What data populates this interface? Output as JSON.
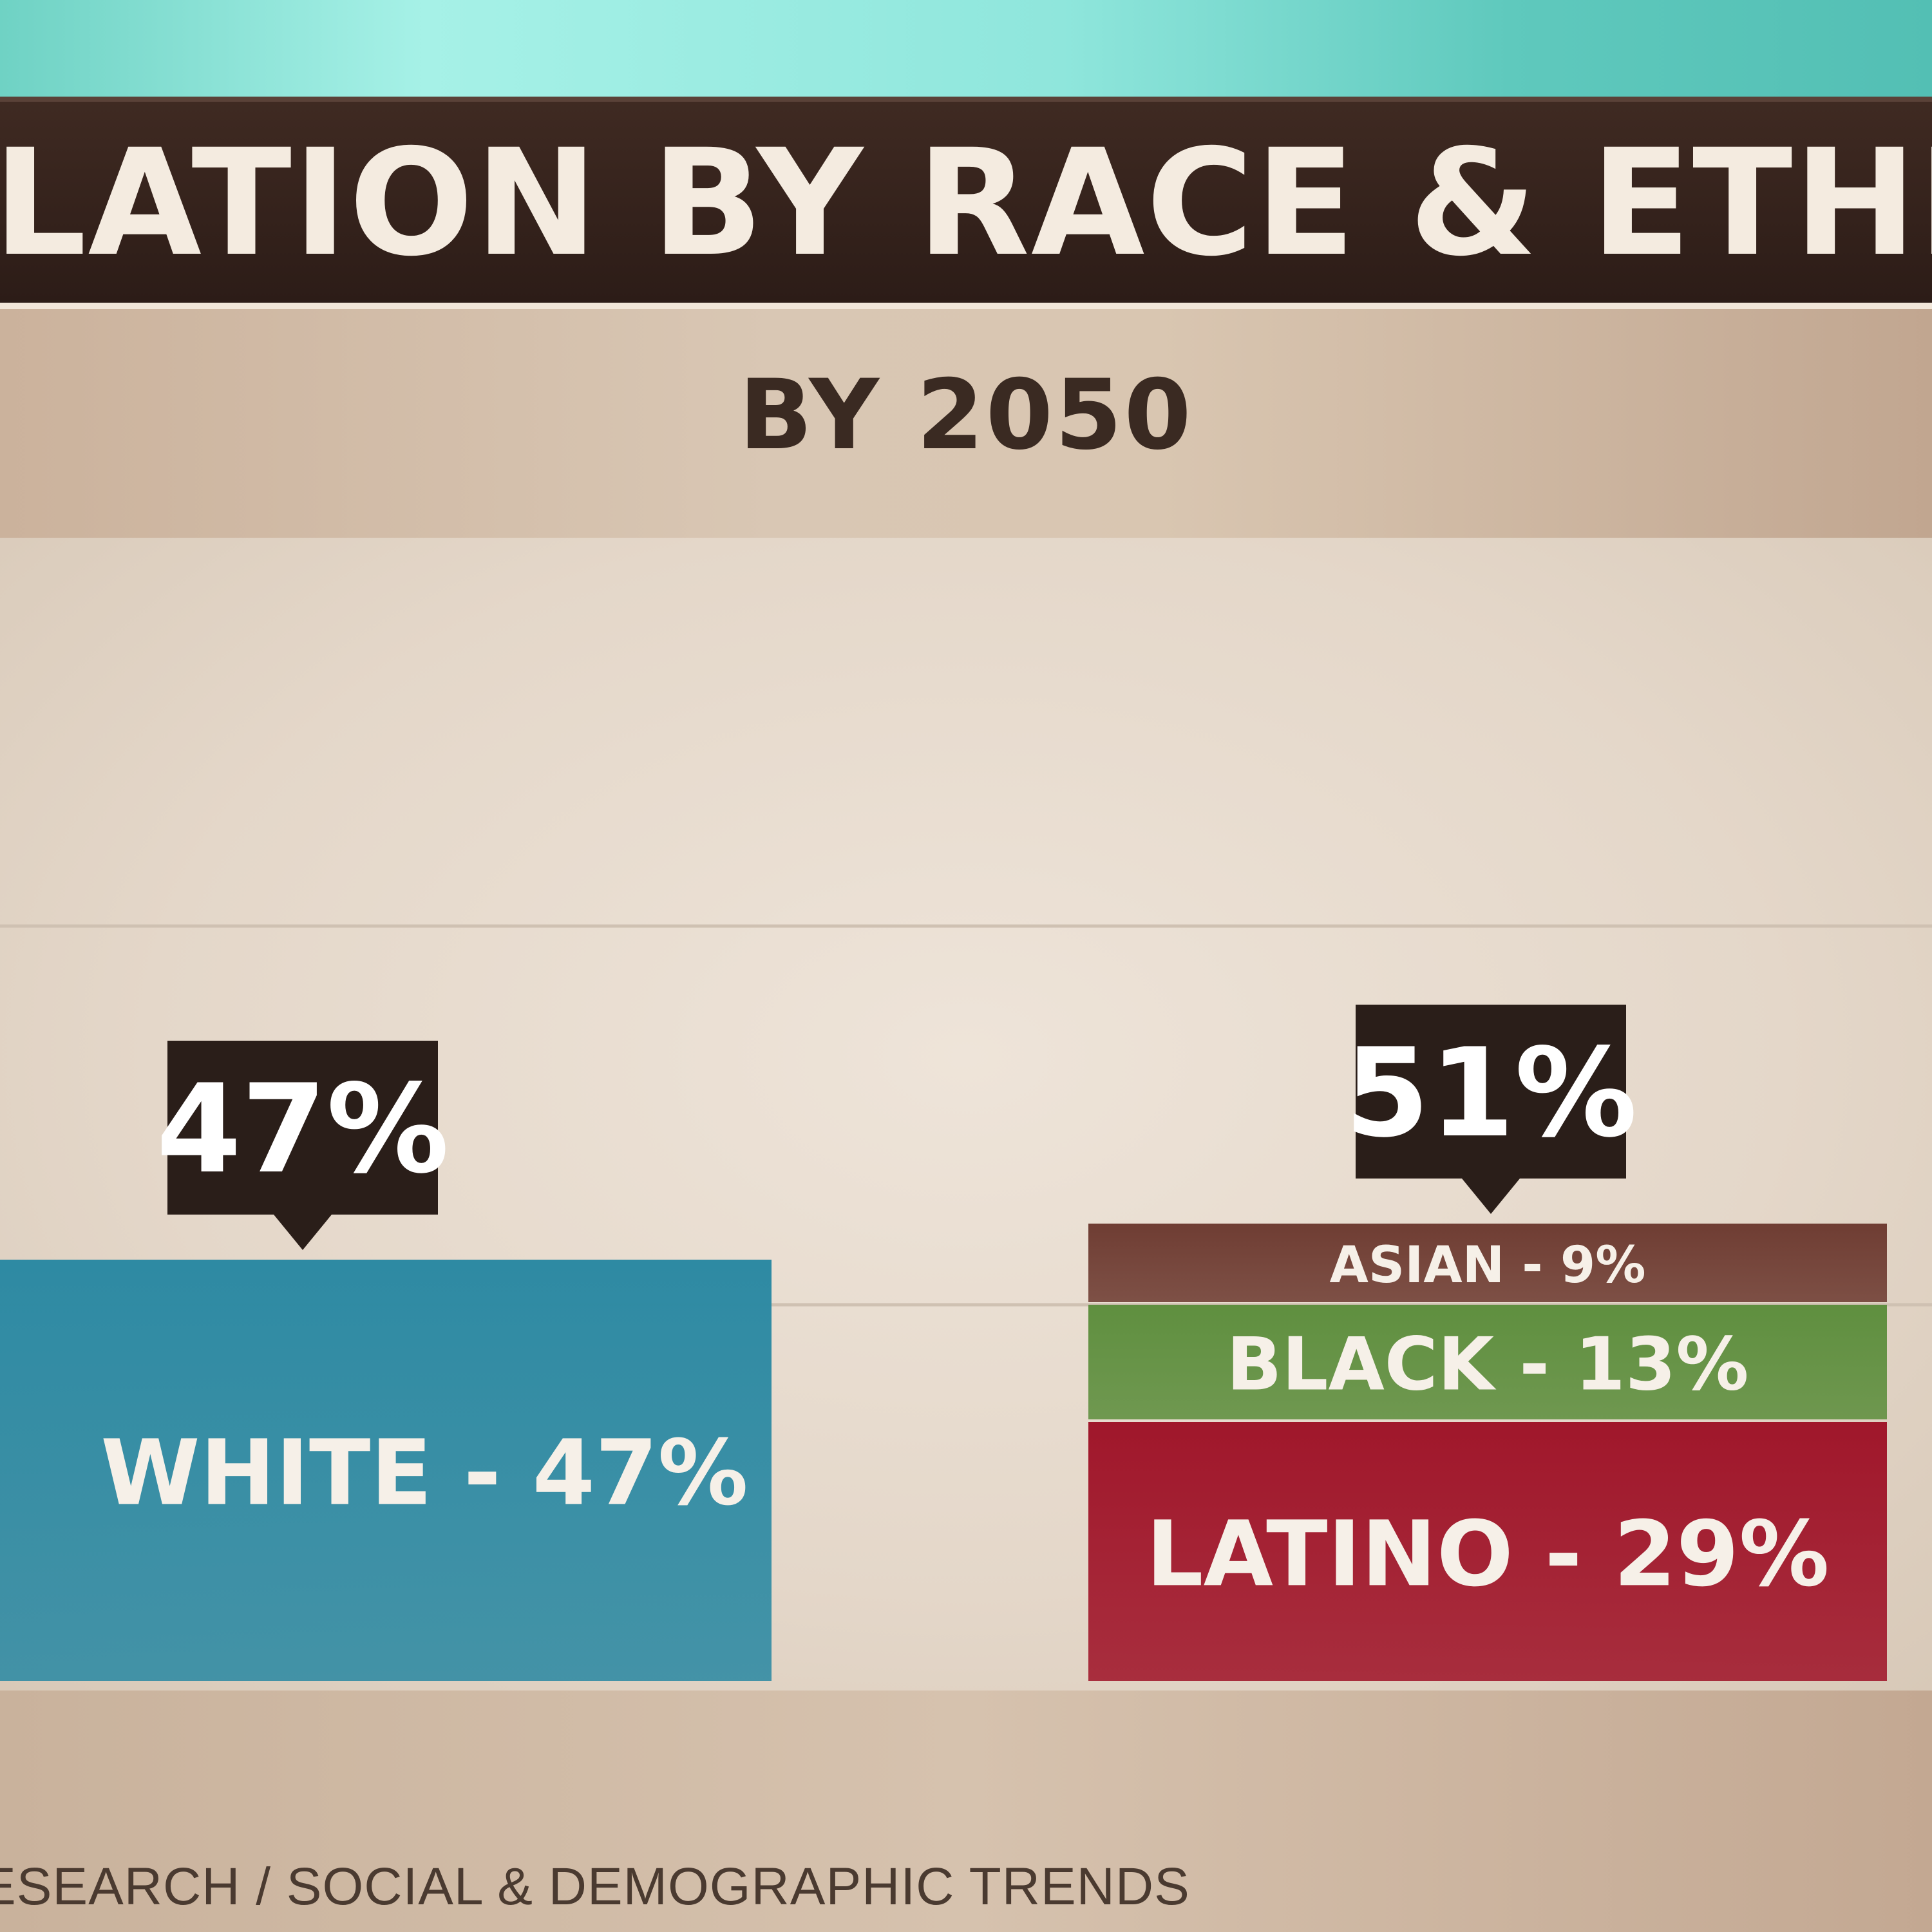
{
  "title": "ULATION BY RACE & ETHNI",
  "subtitle": "BY 2050",
  "footer": "ESEARCH / SOCIAL & DEMOGRAPHIC TRENDS",
  "colors": {
    "white": "#2e8aa3",
    "asian": "#6f3d33",
    "black": "#5f8f3f",
    "latino": "#a0172b",
    "callout": "#2a1e19"
  },
  "chart_data": {
    "type": "bar",
    "stacked": true,
    "title": "ULATION BY RACE & ETHNI",
    "subtitle": "BY 2050",
    "ylim": [
      0,
      60
    ],
    "grid": true,
    "bars": [
      {
        "total_label": "47%",
        "total": 47,
        "segments": [
          {
            "name": "WHITE",
            "value": 47,
            "label": "WHITE - 47%",
            "color": "#2e8aa3"
          }
        ]
      },
      {
        "total_label": "51%",
        "total": 51,
        "segments": [
          {
            "name": "LATINO",
            "value": 29,
            "label": "LATINO - 29%",
            "color": "#a0172b"
          },
          {
            "name": "BLACK",
            "value": 13,
            "label": "BLACK - 13%",
            "color": "#5f8f3f"
          },
          {
            "name": "ASIAN",
            "value": 9,
            "label": "ASIAN - 9%",
            "color": "#6f3d33"
          }
        ]
      }
    ]
  }
}
